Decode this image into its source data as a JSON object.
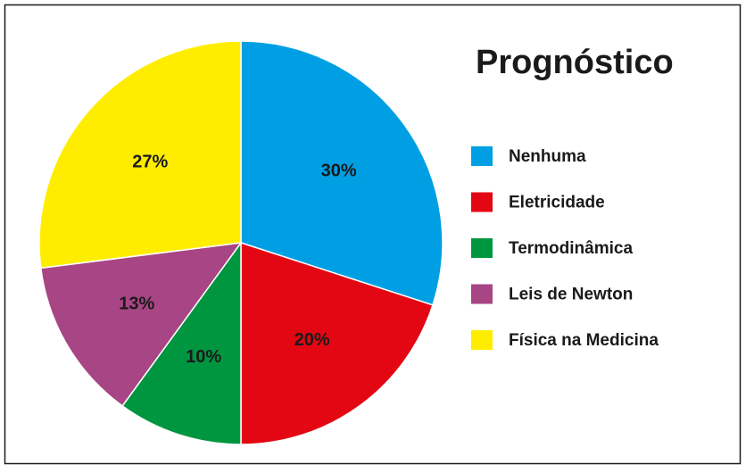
{
  "chart_data": {
    "type": "pie",
    "title": "Prognóstico",
    "categories": [
      "Nenhuma",
      "Eletricidade",
      "Termodinâmica",
      "Leis de Newton",
      "Física na Medicina"
    ],
    "values": [
      30,
      20,
      10,
      13,
      27
    ],
    "value_labels": [
      "30%",
      "20%",
      "10%",
      "13%",
      "27%"
    ],
    "colors": [
      "#009fe3",
      "#e30613",
      "#009640",
      "#a84584",
      "#ffed00"
    ],
    "legend": "right"
  }
}
